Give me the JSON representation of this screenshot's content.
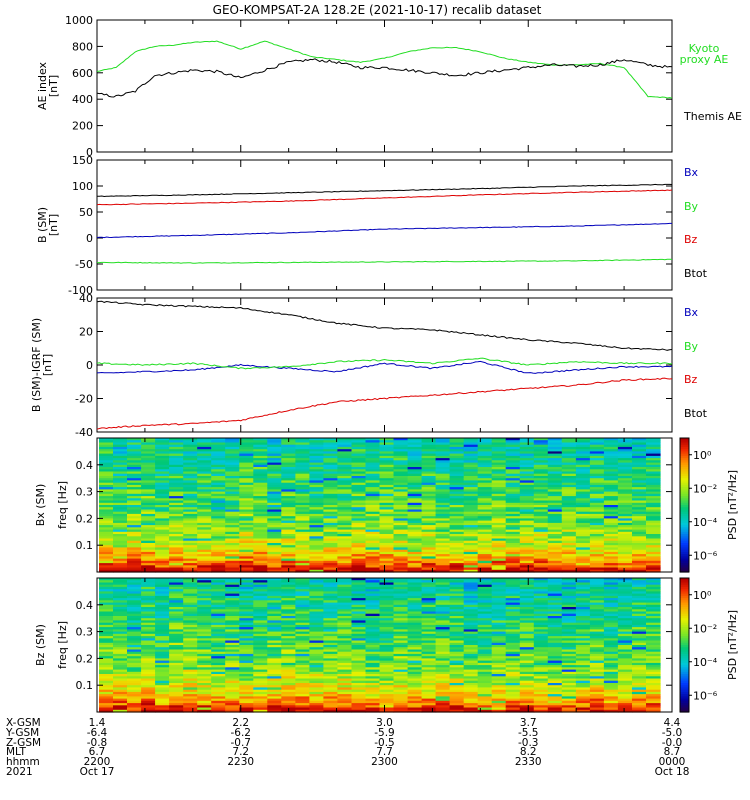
{
  "title": "GEO-KOMPSAT-2A 128.2E (2021-10-17) recalib dataset",
  "colors": {
    "black": "#000000",
    "red": "#dd0000",
    "blue": "#0000bb",
    "green": "#22dd22"
  },
  "chart_data": [
    {
      "type": "line",
      "panel": "AE index",
      "ylabel_main": "AE index",
      "ylabel_unit": "[nT]",
      "ylim": [
        0,
        1000
      ],
      "yticks": [
        0,
        200,
        400,
        600,
        800,
        1000
      ],
      "x_time_hhmm": [
        "2200",
        "2230",
        "2300",
        "2330",
        "0000"
      ],
      "series": [
        {
          "name": "Kyoto proxy AE",
          "color": "#22dd22",
          "t": [
            0,
            4,
            8,
            12,
            16,
            20,
            25,
            30,
            35,
            40,
            45,
            50,
            55,
            60,
            65,
            70,
            75,
            80,
            85,
            90,
            95,
            100,
            105,
            110,
            115,
            120
          ],
          "values": [
            610,
            640,
            760,
            800,
            810,
            830,
            840,
            780,
            840,
            780,
            720,
            700,
            680,
            710,
            760,
            790,
            790,
            760,
            710,
            680,
            660,
            660,
            670,
            640,
            420,
            410
          ]
        },
        {
          "name": "Themis AE",
          "color": "#000000",
          "t": [
            0,
            4,
            8,
            12,
            16,
            20,
            25,
            30,
            35,
            40,
            45,
            50,
            55,
            60,
            65,
            70,
            75,
            80,
            85,
            90,
            95,
            100,
            105,
            110,
            115,
            120
          ],
          "values": [
            440,
            420,
            460,
            580,
            600,
            620,
            610,
            560,
            620,
            680,
            700,
            680,
            640,
            640,
            620,
            600,
            580,
            600,
            620,
            640,
            660,
            650,
            660,
            700,
            660,
            640
          ]
        }
      ]
    },
    {
      "type": "line",
      "panel": "B (SM)",
      "ylabel_main": "B (SM)",
      "ylabel_unit": "[nT]",
      "ylim": [
        -100,
        150
      ],
      "yticks": [
        -100,
        -50,
        0,
        50,
        100,
        150
      ],
      "series": [
        {
          "name": "Bx",
          "color": "#0000bb",
          "t": [
            0,
            20,
            40,
            60,
            80,
            100,
            120
          ],
          "values": [
            1,
            5,
            10,
            17,
            20,
            23,
            28
          ]
        },
        {
          "name": "By",
          "color": "#22dd22",
          "t": [
            0,
            20,
            40,
            60,
            80,
            100,
            120
          ],
          "values": [
            -47,
            -48,
            -47,
            -46,
            -45,
            -44,
            -41
          ]
        },
        {
          "name": "Bz",
          "color": "#dd0000",
          "t": [
            0,
            20,
            40,
            60,
            80,
            100,
            120
          ],
          "values": [
            64,
            67,
            71,
            77,
            83,
            88,
            92
          ]
        },
        {
          "name": "Btot",
          "color": "#000000",
          "t": [
            0,
            20,
            40,
            60,
            80,
            100,
            120
          ],
          "values": [
            80,
            83,
            87,
            91,
            95,
            100,
            103
          ]
        }
      ]
    },
    {
      "type": "line",
      "panel": "B (SM) - IGRF (SM)",
      "ylabel_main": "B (SM)-IGRF (SM)",
      "ylabel_unit": "[nT]",
      "ylim": [
        -40,
        40
      ],
      "yticks": [
        -40,
        -20,
        0,
        20,
        40
      ],
      "series": [
        {
          "name": "Bx",
          "color": "#0000bb",
          "t": [
            0,
            10,
            20,
            30,
            40,
            50,
            60,
            70,
            80,
            90,
            100,
            110,
            120
          ],
          "values": [
            -5,
            -4,
            -3,
            0,
            -2,
            -4,
            1,
            -2,
            2,
            -5,
            -3,
            -1,
            -1
          ]
        },
        {
          "name": "By",
          "color": "#22dd22",
          "t": [
            0,
            10,
            20,
            30,
            40,
            50,
            60,
            70,
            80,
            90,
            100,
            110,
            120
          ],
          "values": [
            1,
            0,
            1,
            -2,
            -1,
            2,
            3,
            1,
            4,
            0,
            2,
            1,
            1
          ]
        },
        {
          "name": "Bz",
          "color": "#dd0000",
          "t": [
            0,
            10,
            20,
            30,
            40,
            50,
            60,
            70,
            80,
            90,
            100,
            110,
            120
          ],
          "values": [
            -38,
            -36,
            -35,
            -33,
            -27,
            -22,
            -20,
            -18,
            -16,
            -14,
            -12,
            -9,
            -8
          ]
        },
        {
          "name": "Btot",
          "color": "#000000",
          "t": [
            0,
            10,
            20,
            30,
            40,
            50,
            60,
            70,
            80,
            90,
            100,
            110,
            120
          ],
          "values": [
            38,
            36,
            35,
            34,
            30,
            25,
            22,
            21,
            18,
            15,
            13,
            10,
            9
          ]
        }
      ]
    },
    {
      "type": "heatmap",
      "panel": "Bx (SM) spectrogram",
      "ylabel_main": "Bx (SM)",
      "ylabel_sub": "freq [Hz]",
      "ylim": [
        0,
        0.5
      ],
      "yticks": [
        0.1,
        0.2,
        0.3,
        0.4
      ],
      "colorbar_label": "PSD [nT²/Hz]",
      "colorbar_ticks": [
        "10⁰",
        "10⁻²",
        "10⁻⁴",
        "10⁻⁶"
      ],
      "colorbar_tick_values_log10": [
        0,
        -2,
        -4,
        -6
      ],
      "colorbar_range_log10": [
        -7,
        1
      ]
    },
    {
      "type": "heatmap",
      "panel": "Bz (SM) spectrogram",
      "ylabel_main": "Bz (SM)",
      "ylabel_sub": "freq [Hz]",
      "ylim": [
        0,
        0.5
      ],
      "yticks": [
        0.1,
        0.2,
        0.3,
        0.4
      ],
      "colorbar_label": "PSD [nT²/Hz]",
      "colorbar_ticks": [
        "10⁰",
        "10⁻²",
        "10⁻⁴",
        "10⁻⁶"
      ],
      "colorbar_tick_values_log10": [
        0,
        -2,
        -4,
        -6
      ],
      "colorbar_range_log10": [
        -7,
        1
      ]
    }
  ],
  "legend_labels": {
    "ae_kyoto_1": "Kyoto",
    "ae_kyoto_2": "proxy AE",
    "ae_themis": "Themis AE",
    "bx": "Bx",
    "by": "By",
    "bz": "Bz",
    "btot": "Btot"
  },
  "ephemeris": {
    "labels": [
      "X-GSM",
      "Y-GSM",
      "Z-GSM",
      "MLT",
      "hhmm",
      "2021"
    ],
    "columns": [
      [
        "1.4",
        "-6.4",
        "-0.8",
        "6.7",
        "2200",
        "Oct 17"
      ],
      [
        "2.2",
        "-6.2",
        "-0.7",
        "7.2",
        "2230",
        ""
      ],
      [
        "3.0",
        "-5.9",
        "-0.5",
        "7.7",
        "2300",
        ""
      ],
      [
        "3.7",
        "-5.5",
        "-0.3",
        "8.2",
        "2330",
        ""
      ],
      [
        "4.4",
        "-5.0",
        "-0.0",
        "8.7",
        "0000",
        "Oct 18"
      ]
    ]
  }
}
